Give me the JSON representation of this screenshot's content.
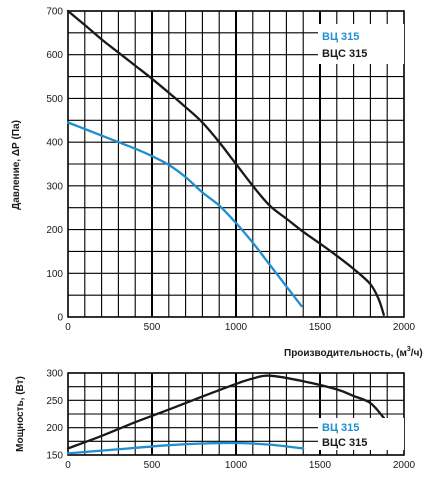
{
  "colors": {
    "black": "#1a1a1a",
    "blue": "#1f8fcf",
    "grid": "#000000"
  },
  "chart_data": [
    {
      "type": "line",
      "xlabel": "Производительность, (м³/ч)",
      "xlabel_parts": {
        "main": "Производительность, (м",
        "sup": "3",
        "tail": "/ч)"
      },
      "ylabel": "Давление, ΔР (Па)",
      "xlim": [
        0,
        2000
      ],
      "ylim": [
        0,
        700
      ],
      "xticks": [
        0,
        500,
        1000,
        1500,
        2000
      ],
      "yticks": [
        0,
        100,
        200,
        300,
        400,
        500,
        600,
        700
      ],
      "grid": true,
      "legend": "top-right",
      "series": [
        {
          "name": "ВЦ 315",
          "color": "#1f8fcf",
          "x": [
            0,
            100,
            200,
            300,
            400,
            500,
            600,
            700,
            800,
            900,
            1000,
            1100,
            1200,
            1300,
            1390
          ],
          "y": [
            445,
            430,
            415,
            400,
            385,
            368,
            348,
            320,
            285,
            255,
            215,
            170,
            120,
            70,
            25
          ]
        },
        {
          "name": "ВЦС 315",
          "color": "#1a1a1a",
          "x": [
            0,
            100,
            200,
            300,
            400,
            500,
            600,
            700,
            800,
            900,
            1000,
            1100,
            1200,
            1300,
            1400,
            1500,
            1600,
            1700,
            1800,
            1850,
            1880
          ],
          "y": [
            700,
            668,
            635,
            605,
            575,
            545,
            513,
            480,
            445,
            400,
            350,
            300,
            255,
            225,
            195,
            168,
            140,
            110,
            75,
            40,
            5
          ]
        }
      ]
    },
    {
      "type": "line",
      "xlabel": "",
      "ylabel": "Мощность, (Вт)",
      "xlim": [
        0,
        2000
      ],
      "ylim": [
        150,
        300
      ],
      "xticks": [
        0,
        500,
        1000,
        1500,
        2000
      ],
      "yticks": [
        150,
        200,
        250,
        300
      ],
      "grid": true,
      "legend": "bottom-right",
      "series": [
        {
          "name": "ВЦ 315",
          "color": "#1f8fcf",
          "x": [
            0,
            200,
            400,
            600,
            800,
            1000,
            1200,
            1400
          ],
          "y": [
            153,
            158,
            163,
            168,
            171,
            172,
            169,
            162
          ]
        },
        {
          "name": "ВЦС 315",
          "color": "#1a1a1a",
          "x": [
            0,
            200,
            400,
            600,
            800,
            1000,
            1100,
            1200,
            1400,
            1600,
            1700,
            1800,
            1880
          ],
          "y": [
            162,
            185,
            210,
            233,
            257,
            280,
            290,
            295,
            285,
            270,
            258,
            245,
            218
          ]
        }
      ]
    }
  ]
}
